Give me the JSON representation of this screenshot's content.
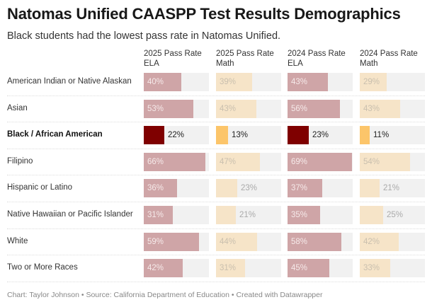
{
  "header": {
    "title": "Natomas Unified CAASPP Test Results Demographics",
    "subtitle": "Black students had the lowest pass rate in Natomas Unified."
  },
  "footer": "Chart: Taylor Johnson • Source: California Department of Education • Created with Datawrapper",
  "colors": {
    "ela_muted": "#cfa5a7",
    "ela_highlight": "#7f0000",
    "math_muted": "#f6e4c8",
    "math_highlight": "#fcc56a",
    "track": "#f1f1f1"
  },
  "chart_data": {
    "type": "table",
    "title": "Natomas Unified CAASPP Test Results Demographics",
    "subtitle": "Black students had the lowest pass rate in Natomas Unified.",
    "columns": [
      {
        "line1": "2025 Pass Rate",
        "line2": "ELA",
        "kind": "ela"
      },
      {
        "line1": "2025 Pass Rate",
        "line2": "Math",
        "kind": "math"
      },
      {
        "line1": "2024 Pass Rate",
        "line2": "ELA",
        "kind": "ela"
      },
      {
        "line1": "2024 Pass Rate",
        "line2": "Math",
        "kind": "math"
      }
    ],
    "scale_max": 70,
    "highlight_row": "Black / African American",
    "rows": [
      {
        "label": "American Indian or Native Alaskan",
        "values": [
          40,
          39,
          43,
          29
        ]
      },
      {
        "label": "Asian",
        "values": [
          53,
          43,
          56,
          43
        ]
      },
      {
        "label": "Black / African American",
        "values": [
          22,
          13,
          23,
          11
        ]
      },
      {
        "label": "Filipino",
        "values": [
          66,
          47,
          69,
          54
        ]
      },
      {
        "label": "Hispanic or Latino",
        "values": [
          36,
          23,
          37,
          21
        ]
      },
      {
        "label": "Native Hawaiian or Pacific Islander",
        "values": [
          31,
          21,
          35,
          25
        ]
      },
      {
        "label": "White",
        "values": [
          59,
          44,
          58,
          42
        ]
      },
      {
        "label": "Two or More Races",
        "values": [
          42,
          31,
          45,
          33
        ]
      }
    ]
  }
}
